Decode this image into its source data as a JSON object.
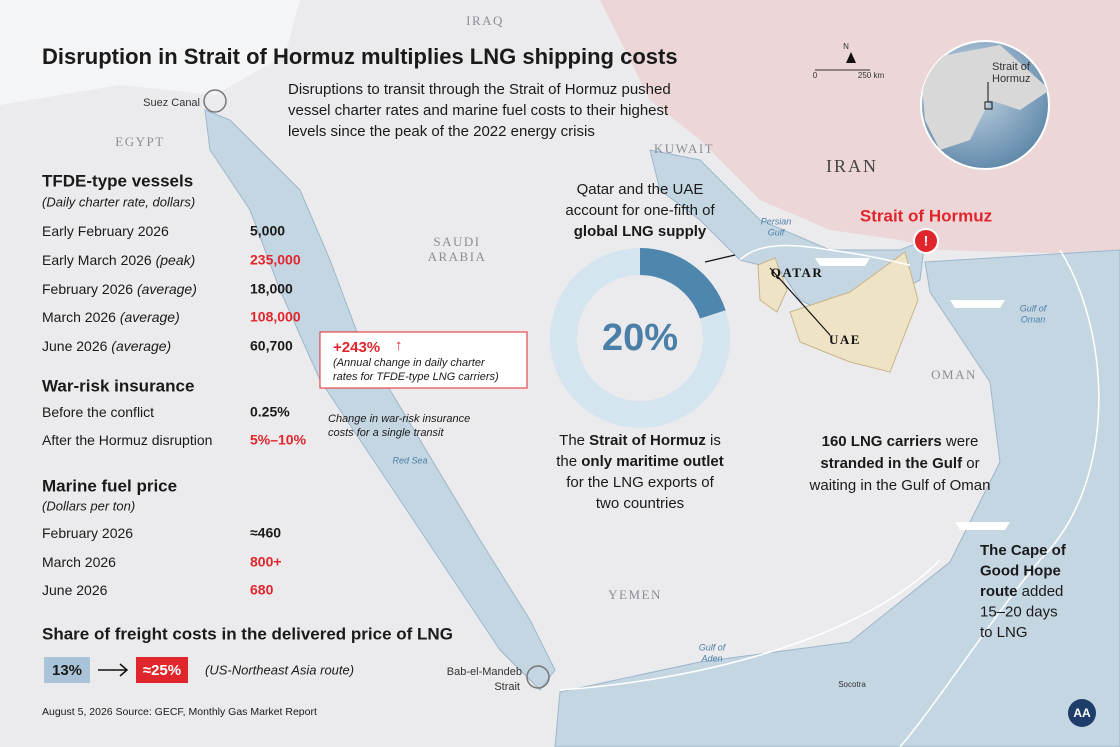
{
  "title": "Disruption in Strait of Hormuz multiplies LNG shipping costs",
  "subtitle": [
    "Disruptions to transit through the Strait of Hormuz pushed",
    "vessel charter rates and marine fuel costs to their highest",
    "levels since the peak of the 2022 energy crisis"
  ],
  "sections": [
    {
      "heading": "TFDE-type vessels",
      "subheading": "(Daily charter rate, dollars)",
      "rows": [
        {
          "label": "Early February 2026",
          "value": "5,000",
          "highlight": false
        },
        {
          "label": "Early March 2026",
          "qualifier": "(peak)",
          "value": "235,000",
          "highlight": true
        },
        {
          "label": "February 2026",
          "qualifier": "(average)",
          "value": "18,000",
          "highlight": false
        },
        {
          "label": "March 2026",
          "qualifier": "(average)",
          "value": "108,000",
          "highlight": true
        },
        {
          "label": "June 2026",
          "qualifier": "(average)",
          "value": "60,700",
          "highlight": false
        }
      ],
      "callout": {
        "value": "+243%",
        "note": [
          "(Annual change in daily charter",
          "rates for TFDE-type LNG carriers)"
        ]
      }
    },
    {
      "heading": "War-risk insurance",
      "rows": [
        {
          "label": "Before the conflict",
          "value": "0.25%",
          "highlight": false
        },
        {
          "label": "After the Hormuz disruption",
          "value": "5%–10%",
          "highlight": true
        }
      ],
      "note": [
        "Change in war-risk insurance",
        "costs for a single transit"
      ]
    },
    {
      "heading": "Marine fuel price",
      "subheading": "(Dollars per ton)",
      "rows": [
        {
          "label": "February 2026",
          "value": "≈460",
          "highlight": false
        },
        {
          "label": "March 2026",
          "value": "800+",
          "highlight": true
        },
        {
          "label": "June 2026",
          "value": "680",
          "highlight": true
        }
      ]
    }
  ],
  "freight": {
    "heading": "Share of freight costs in the delivered price of LNG",
    "from": "13%",
    "to": "≈25%",
    "route": "(US-Northeast Asia route)"
  },
  "footer": "August 5, 2026  Source: GECF, Monthly Gas Market Report",
  "donut": {
    "intro": [
      [
        {
          "text": "Qatar and the UAE",
          "bold": false
        }
      ],
      [
        {
          "text": "account for one-fifth of",
          "bold": false
        }
      ],
      [
        {
          "text": "global LNG supply",
          "bold": true
        }
      ]
    ],
    "value": 20,
    "value_label": "20%"
  },
  "hormuz_note": [
    [
      {
        "text": "The ",
        "bold": false
      },
      {
        "text": "Strait of Hormuz",
        "bold": true
      },
      {
        "text": " is",
        "bold": false
      }
    ],
    [
      {
        "text": "the ",
        "bold": false
      },
      {
        "text": "only maritime outlet",
        "bold": true
      }
    ],
    [
      {
        "text": "for the LNG exports of",
        "bold": false
      }
    ],
    [
      {
        "text": "two countries",
        "bold": false
      }
    ]
  ],
  "carriers_note": [
    [
      {
        "text": "160 LNG carriers",
        "bold": true
      },
      {
        "text": " were",
        "bold": false
      }
    ],
    [
      {
        "text": "stranded in the Gulf",
        "bold": true
      },
      {
        "text": " or",
        "bold": false
      }
    ],
    [
      {
        "text": "waiting in the Gulf of Oman",
        "bold": false
      }
    ]
  ],
  "cape_note": [
    [
      {
        "text": "The Cape of",
        "bold": true
      }
    ],
    [
      {
        "text": "Good Hope",
        "bold": true
      }
    ],
    [
      {
        "text": "route",
        "bold": true
      },
      {
        "text": " added",
        "bold": false
      }
    ],
    [
      {
        "text": "15–20 days",
        "bold": false
      }
    ],
    [
      {
        "text": "to LNG",
        "bold": false
      }
    ]
  ],
  "map_labels": [
    "IRAQ",
    "EGYPT",
    "SAUDI",
    "ARABIA",
    "KUWAIT",
    "IRAN",
    "QATAR",
    "UAE",
    "OMAN",
    "YEMEN",
    "Persian",
    "Gulf",
    "Gulf of",
    "Oman",
    "Red Sea",
    "Gulf of",
    "Aden",
    "Socotra",
    "Suez Canal",
    "Bab-el-Mandeb",
    "Strait",
    "Strait of Hormuz",
    "Strait of",
    "Hormuz",
    "N",
    "0",
    "250 km"
  ]
}
